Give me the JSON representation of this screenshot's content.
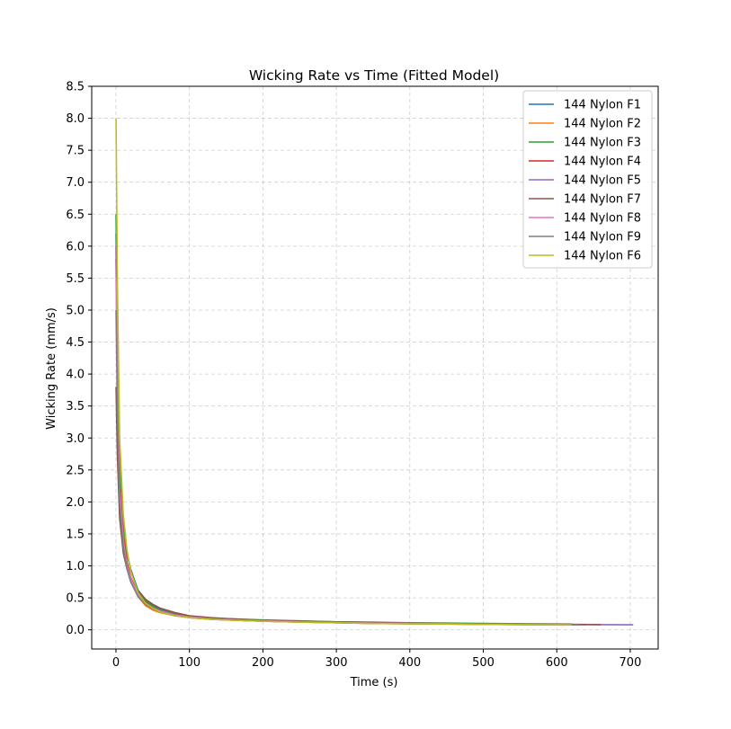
{
  "chart_data": {
    "type": "line",
    "title": "Wicking Rate vs Time (Fitted Model)",
    "xlabel": "Time (s)",
    "ylabel": "Wicking Rate (mm/s)",
    "xlim": [
      -33,
      738
    ],
    "ylim": [
      -0.3,
      8.5
    ],
    "xticks": [
      0,
      100,
      200,
      300,
      400,
      500,
      600,
      700
    ],
    "yticks": [
      0.0,
      0.5,
      1.0,
      1.5,
      2.0,
      2.5,
      3.0,
      3.5,
      4.0,
      4.5,
      5.0,
      5.5,
      6.0,
      6.5,
      7.0,
      7.5,
      8.0,
      8.5
    ],
    "grid": true,
    "legend_position": "upper right",
    "series": [
      {
        "name": "144 Nylon F1",
        "color": "#1f77b4",
        "x": [
          0.1,
          2,
          5,
          10,
          15,
          20,
          30,
          40,
          50,
          60,
          80,
          100,
          130,
          160,
          200,
          250,
          300,
          350,
          400,
          450,
          500,
          560,
          620
        ],
        "y": [
          6.2,
          4.4,
          2.6,
          1.65,
          1.2,
          0.95,
          0.62,
          0.48,
          0.38,
          0.32,
          0.25,
          0.21,
          0.18,
          0.16,
          0.14,
          0.125,
          0.115,
          0.11,
          0.1,
          0.095,
          0.09,
          0.085,
          0.08
        ]
      },
      {
        "name": "144 Nylon F2",
        "color": "#ff7f0e",
        "x": [
          0.1,
          2,
          5,
          10,
          15,
          20,
          30,
          40,
          50,
          60,
          80,
          100,
          130,
          160,
          200,
          250,
          300,
          350,
          400,
          450,
          500,
          560,
          610
        ],
        "y": [
          6.0,
          4.2,
          2.4,
          1.5,
          1.05,
          0.8,
          0.52,
          0.38,
          0.31,
          0.27,
          0.22,
          0.19,
          0.165,
          0.15,
          0.135,
          0.12,
          0.11,
          0.1,
          0.095,
          0.09,
          0.085,
          0.08,
          0.075
        ]
      },
      {
        "name": "144 Nylon F3",
        "color": "#2ca02c",
        "x": [
          0.1,
          2,
          5,
          10,
          15,
          20,
          30,
          40,
          50,
          60,
          80,
          100,
          130,
          160,
          200,
          250,
          300,
          350,
          400,
          450,
          500,
          560,
          620
        ],
        "y": [
          6.5,
          4.6,
          2.7,
          1.7,
          1.2,
          0.92,
          0.6,
          0.45,
          0.37,
          0.31,
          0.25,
          0.21,
          0.185,
          0.17,
          0.155,
          0.14,
          0.125,
          0.12,
          0.11,
          0.105,
          0.1,
          0.095,
          0.09
        ]
      },
      {
        "name": "144 Nylon F4",
        "color": "#d62728",
        "x": [
          0.1,
          2,
          5,
          10,
          15,
          20,
          30,
          40,
          50,
          60,
          80,
          100,
          130,
          160,
          200,
          250,
          300,
          350,
          400,
          450,
          500,
          560,
          640
        ],
        "y": [
          5.8,
          4.0,
          2.3,
          1.45,
          1.05,
          0.82,
          0.56,
          0.43,
          0.35,
          0.3,
          0.24,
          0.2,
          0.175,
          0.16,
          0.14,
          0.125,
          0.115,
          0.11,
          0.1,
          0.095,
          0.09,
          0.085,
          0.08
        ]
      },
      {
        "name": "144 Nylon F5",
        "color": "#9467bd",
        "x": [
          0.1,
          2,
          5,
          10,
          15,
          20,
          30,
          40,
          50,
          60,
          80,
          100,
          130,
          160,
          200,
          250,
          300,
          350,
          400,
          450,
          500,
          560,
          620,
          704
        ],
        "y": [
          6.0,
          4.0,
          2.2,
          1.4,
          1.0,
          0.8,
          0.55,
          0.42,
          0.35,
          0.3,
          0.24,
          0.2,
          0.175,
          0.16,
          0.14,
          0.125,
          0.115,
          0.11,
          0.1,
          0.095,
          0.09,
          0.085,
          0.082,
          0.078
        ]
      },
      {
        "name": "144 Nylon F7",
        "color": "#8c564b",
        "x": [
          0.1,
          2,
          5,
          10,
          15,
          20,
          30,
          40,
          50,
          60,
          80,
          100,
          130,
          160,
          200,
          250,
          300,
          350,
          400,
          450,
          500,
          560,
          620,
          660
        ],
        "y": [
          3.8,
          2.7,
          1.75,
          1.2,
          0.95,
          0.8,
          0.6,
          0.48,
          0.4,
          0.34,
          0.27,
          0.22,
          0.19,
          0.17,
          0.15,
          0.135,
          0.125,
          0.115,
          0.105,
          0.1,
          0.095,
          0.09,
          0.085,
          0.08
        ]
      },
      {
        "name": "144 Nylon F8",
        "color": "#e377c2",
        "x": [
          0.1,
          2,
          5,
          10,
          15,
          20,
          30,
          40,
          50,
          60,
          80,
          100,
          130,
          160,
          200,
          250,
          300,
          350,
          400,
          450,
          500,
          560,
          620
        ],
        "y": [
          5.5,
          3.8,
          2.2,
          1.4,
          1.0,
          0.8,
          0.55,
          0.42,
          0.34,
          0.29,
          0.23,
          0.2,
          0.17,
          0.155,
          0.14,
          0.125,
          0.115,
          0.105,
          0.1,
          0.095,
          0.09,
          0.085,
          0.08
        ]
      },
      {
        "name": "144 Nylon F9",
        "color": "#7f7f7f",
        "x": [
          0.1,
          2,
          5,
          10,
          15,
          20,
          30,
          40,
          50,
          60,
          80,
          100,
          130,
          160,
          200,
          250,
          300,
          350,
          400,
          450,
          500,
          560,
          630
        ],
        "y": [
          5.0,
          3.4,
          2.0,
          1.3,
          0.95,
          0.75,
          0.52,
          0.4,
          0.33,
          0.28,
          0.22,
          0.19,
          0.165,
          0.15,
          0.135,
          0.12,
          0.11,
          0.1,
          0.095,
          0.09,
          0.085,
          0.08,
          0.078
        ]
      },
      {
        "name": "144 Nylon F6",
        "color": "#bcbd22",
        "x": [
          0.1,
          2,
          5,
          10,
          15,
          20,
          30,
          40,
          50,
          60,
          80,
          100,
          130,
          160,
          200,
          250,
          300,
          350,
          400,
          450,
          500,
          560,
          620
        ],
        "y": [
          8.0,
          5.4,
          3.0,
          1.8,
          1.25,
          0.92,
          0.58,
          0.42,
          0.34,
          0.28,
          0.22,
          0.19,
          0.165,
          0.15,
          0.135,
          0.12,
          0.11,
          0.1,
          0.095,
          0.09,
          0.085,
          0.08,
          0.075
        ]
      }
    ]
  }
}
